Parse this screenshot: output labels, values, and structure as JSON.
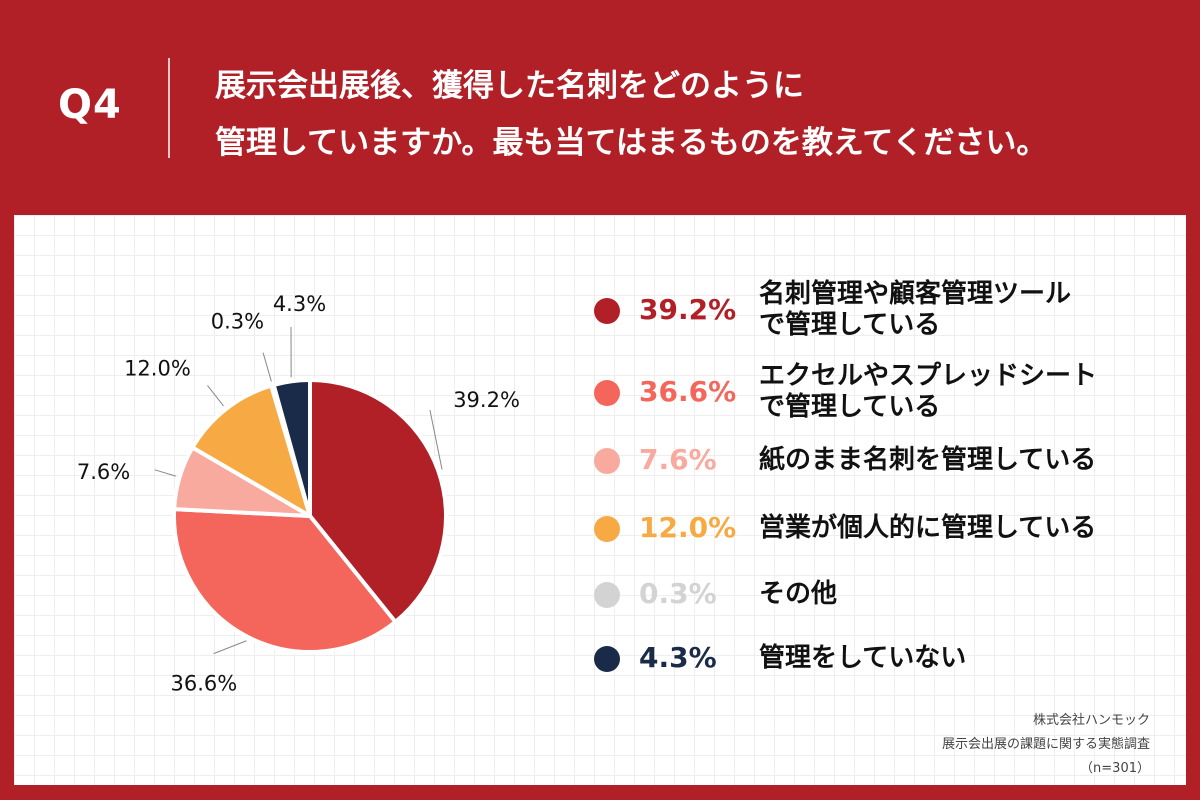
{
  "header": {
    "question_number": "Q4",
    "question_line1": "展示会出展後、獲得した名刺をどのように",
    "question_line2": "管理していますか。最も当てはまるものを教えてください。"
  },
  "colors": {
    "background": "#b11f27",
    "panel": "#ffffff"
  },
  "chart_data": {
    "type": "pie",
    "title": "展示会出展後、獲得した名刺をどのように管理していますか。最も当てはまるものを教えてください。",
    "unit": "%",
    "series": [
      {
        "name": "名刺管理や顧客管理ツールで管理している",
        "label_lines": [
          "名刺管理や顧客管理ツール",
          "で管理している"
        ],
        "value": 39.2,
        "label": "39.2%",
        "color": "#b11f27"
      },
      {
        "name": "エクセルやスプレッドシートで管理している",
        "label_lines": [
          "エクセルやスプレッドシート",
          "で管理している"
        ],
        "value": 36.6,
        "label": "36.6%",
        "color": "#f4665b"
      },
      {
        "name": "紙のまま名刺を管理している",
        "label_lines": [
          "紙のまま名刺を管理している"
        ],
        "value": 7.6,
        "label": "7.6%",
        "color": "#f8aa9e"
      },
      {
        "name": "営業が個人的に管理している",
        "label_lines": [
          "営業が個人的に管理している"
        ],
        "value": 12.0,
        "label": "12.0%",
        "color": "#f7aa44"
      },
      {
        "name": "その他",
        "label_lines": [
          "その他"
        ],
        "value": 0.3,
        "label": "0.3%",
        "color": "#d3d3d3"
      },
      {
        "name": "管理をしていない",
        "label_lines": [
          "管理をしていない"
        ],
        "value": 4.3,
        "label": "4.3%",
        "color": "#1a2b4a"
      }
    ],
    "legend_placement": "right"
  },
  "source": {
    "company": "株式会社ハンモック",
    "survey": "展示会出展の課題に関する実態調査",
    "sample": "（n=301）"
  }
}
